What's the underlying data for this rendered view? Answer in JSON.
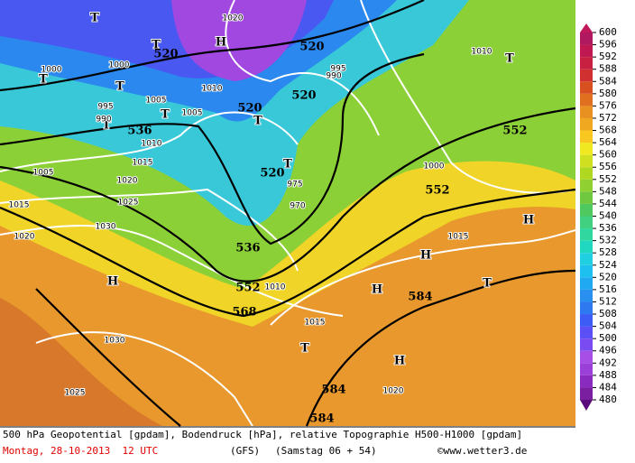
{
  "map": {
    "labels": [
      "H",
      "H",
      "H",
      "H",
      "H",
      "H",
      "T",
      "T",
      "T",
      "T",
      "T",
      "T",
      "T",
      "T",
      "T",
      "T",
      "T",
      "520",
      "520",
      "520",
      "520",
      "520",
      "536",
      "536",
      "552",
      "552",
      "552",
      "568",
      "584",
      "584",
      "584",
      "1000",
      "1000",
      "1000",
      "1005",
      "1005",
      "1005",
      "1010",
      "1010",
      "1010",
      "1010",
      "1015",
      "1015",
      "1015",
      "1015",
      "1020",
      "1020",
      "1020",
      "1020",
      "1025",
      "1025",
      "1030",
      "1030",
      "995",
      "995",
      "990",
      "990",
      "975",
      "970"
    ]
  },
  "colorbar": {
    "levels": [
      480,
      484,
      488,
      492,
      496,
      500,
      504,
      508,
      512,
      516,
      520,
      524,
      528,
      532,
      536,
      540,
      544,
      548,
      552,
      556,
      560,
      564,
      568,
      572,
      576,
      580,
      584,
      588,
      592,
      596,
      600
    ],
    "colors": [
      "#7a1fa0",
      "#8a2bc0",
      "#9a3fd8",
      "#a64ee6",
      "#7a4bf0",
      "#5a50f5",
      "#3c5cf5",
      "#2e78f0",
      "#2a90f0",
      "#20a8f0",
      "#1ec0f0",
      "#20d0e0",
      "#20d8c0",
      "#30d8a0",
      "#40d080",
      "#50c860",
      "#70c840",
      "#90d030",
      "#b0d820",
      "#d0e020",
      "#f0e820",
      "#f8c820",
      "#f0a820",
      "#e89020",
      "#e07020",
      "#d85020",
      "#d03030",
      "#c82040",
      "#c01850",
      "#b01860"
    ]
  },
  "footer": {
    "description": "500 hPa Geopotential [gpdam], Bodendruck [hPa], relative Topographie H500-H1000 [gpdam]",
    "date": "Montag, 28-10-2013  12 UTC",
    "model": "(GFS)",
    "forecast": "(Samstag 06 + 54)",
    "source": "©www.wetter3.de"
  }
}
